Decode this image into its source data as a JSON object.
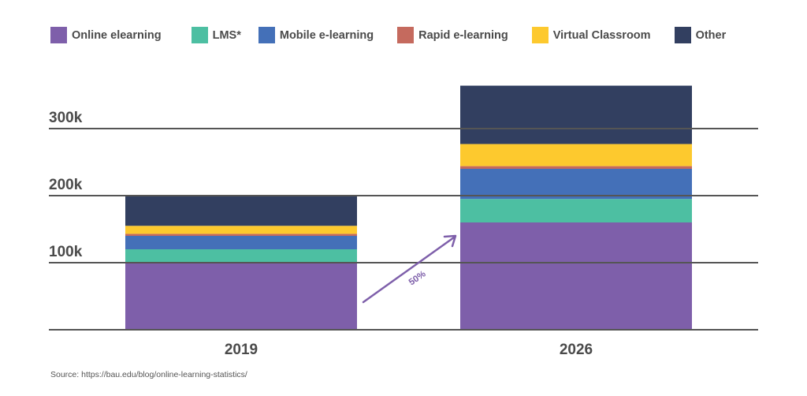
{
  "chart_data": {
    "type": "stacked-bar",
    "categories": [
      "2019",
      "2026"
    ],
    "series": [
      {
        "name": "Online elearning",
        "color": "#7e5faa",
        "values": [
          100,
          160
        ]
      },
      {
        "name": "LMS*",
        "color": "#4dbfa2",
        "values": [
          20,
          35
        ]
      },
      {
        "name": "Mobile e-learning",
        "color": "#4470b8",
        "values": [
          20,
          45
        ]
      },
      {
        "name": "Rapid e-learning",
        "color": "#c56a5e",
        "values": [
          3,
          4
        ]
      },
      {
        "name": "Virtual Classroom",
        "color": "#fdc92e",
        "values": [
          12,
          33
        ]
      },
      {
        "name": "Other",
        "color": "#323f60",
        "values": [
          45,
          87
        ]
      }
    ],
    "yticks": [
      {
        "value": 100,
        "label": "100k"
      },
      {
        "value": 200,
        "label": "200k"
      },
      {
        "value": 300,
        "label": "300k"
      }
    ],
    "ylim": [
      0,
      360
    ],
    "legend_position": "top",
    "annotation": {
      "text": "50%",
      "color": "#7e5faa"
    }
  },
  "source": {
    "label": "Source:",
    "url": "https://bau.edu/blog/online-learning-statistics/"
  }
}
